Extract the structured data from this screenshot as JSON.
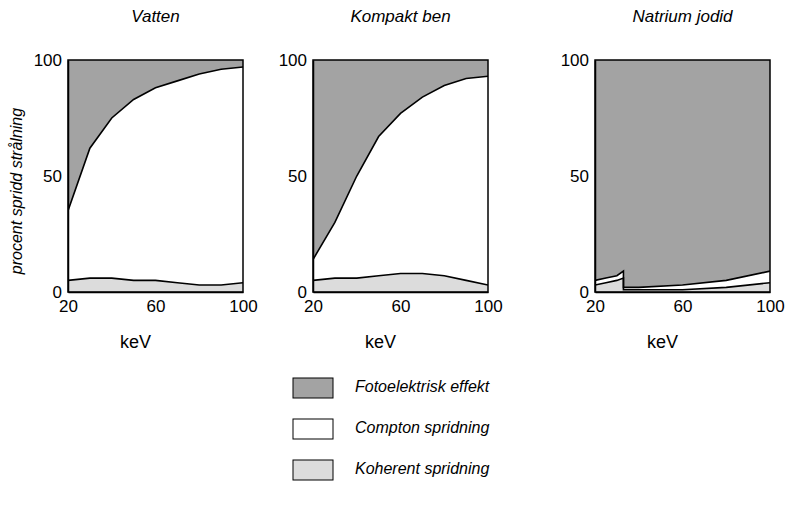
{
  "chart_data": [
    {
      "type": "area",
      "title": "Vatten",
      "x_label": "keV",
      "y_label": "procent spridd strålning",
      "stacked": true,
      "x": [
        20,
        30,
        40,
        50,
        60,
        70,
        80,
        90,
        100
      ],
      "series": [
        {
          "name": "Koherent spridning",
          "color": "#dcdcdc",
          "values": [
            5,
            6,
            6,
            5,
            5,
            4,
            3,
            3,
            4
          ]
        },
        {
          "name": "Compton spridning",
          "color": "#ffffff",
          "values": [
            30,
            56,
            69,
            78,
            83,
            87,
            91,
            93,
            93
          ]
        },
        {
          "name": "Fotoelektrisk effekt",
          "color": "#a3a3a3",
          "values": [
            65,
            38,
            25,
            17,
            12,
            9,
            6,
            4,
            3
          ]
        }
      ],
      "xlim": [
        20,
        100
      ],
      "ylim": [
        0,
        100
      ],
      "xticks": [
        20,
        60,
        100
      ],
      "yticks": [
        0,
        50,
        100
      ]
    },
    {
      "type": "area",
      "title": "Kompakt ben",
      "x_label": "keV",
      "stacked": true,
      "x": [
        20,
        30,
        40,
        50,
        60,
        70,
        80,
        90,
        100
      ],
      "series": [
        {
          "color": "#dcdcdc",
          "values": [
            5,
            6,
            6,
            7,
            8,
            8,
            7,
            5,
            3
          ]
        },
        {
          "color": "#ffffff",
          "values": [
            9,
            24,
            44,
            60,
            69,
            76,
            82,
            87,
            90
          ]
        },
        {
          "color": "#a3a3a3",
          "values": [
            86,
            70,
            50,
            33,
            23,
            16,
            11,
            8,
            7
          ]
        }
      ],
      "xlim": [
        20,
        100
      ],
      "ylim": [
        0,
        100
      ],
      "xticks": [
        20,
        60,
        100
      ],
      "yticks": [
        0,
        50,
        100
      ]
    },
    {
      "type": "area",
      "title": "Natrium jodid",
      "x_label": "keV",
      "stacked": true,
      "x": [
        20,
        25,
        30,
        33,
        33,
        40,
        60,
        80,
        100
      ],
      "series": [
        {
          "color": "#dcdcdc",
          "values": [
            3,
            4,
            5,
            6,
            1,
            1,
            1,
            2,
            4
          ]
        },
        {
          "color": "#ffffff",
          "values": [
            2,
            2,
            2,
            3,
            1,
            1,
            2,
            3,
            5
          ]
        },
        {
          "color": "#a3a3a3",
          "values": [
            95,
            94,
            93,
            91,
            98,
            98,
            97,
            95,
            91
          ]
        }
      ],
      "xlim": [
        20,
        100
      ],
      "ylim": [
        0,
        100
      ],
      "xticks": [
        20,
        60,
        100
      ],
      "yticks": [
        0,
        50,
        100
      ]
    }
  ]
}
